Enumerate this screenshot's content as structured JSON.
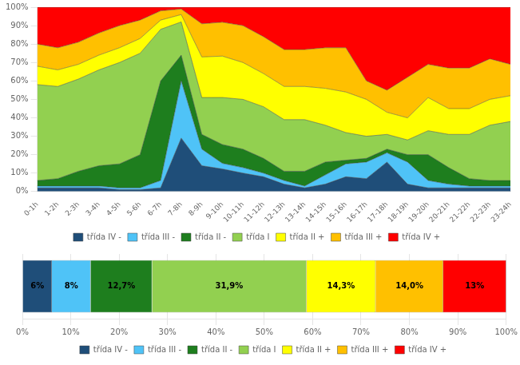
{
  "chart_data": [
    {
      "type": "area",
      "stacked": true,
      "grid": true,
      "legend": "bottom",
      "categories": [
        "0-1h",
        "1-2h",
        "2-3h",
        "3-4h",
        "4-5h",
        "5-6h",
        "6-7h",
        "7-8h",
        "8-9h",
        "9-10h",
        "10-11h",
        "11-12h",
        "12-13h",
        "13-14h",
        "14-15h",
        "15-16h",
        "16-17h",
        "17-18h",
        "18-19h",
        "19-20h",
        "20-21h",
        "21-22h",
        "22-23h",
        "23-24h"
      ],
      "ylim": [
        0,
        100
      ],
      "yticks": [
        {
          "value": 0,
          "label": "0%"
        },
        {
          "value": 10,
          "label": "10%"
        },
        {
          "value": 20,
          "label": "20%"
        },
        {
          "value": 30,
          "label": "30%"
        },
        {
          "value": 40,
          "label": "40%"
        },
        {
          "value": 50,
          "label": "50%"
        },
        {
          "value": 60,
          "label": "60%"
        },
        {
          "value": 70,
          "label": "70%"
        },
        {
          "value": 80,
          "label": "80%"
        },
        {
          "value": 90,
          "label": "90%"
        },
        {
          "value": 100,
          "label": "100%"
        }
      ],
      "series": [
        {
          "name": "třída IV -",
          "color": "#1f4e79",
          "values": [
            2,
            2,
            2,
            2,
            1,
            1,
            2,
            29,
            14,
            12.2449,
            10,
            8,
            4,
            2,
            4,
            8,
            7,
            16,
            4,
            2,
            2,
            2,
            2,
            2
          ]
        },
        {
          "name": "třída III -",
          "color": "#4fc3f7",
          "values": [
            1,
            1,
            1,
            1,
            1,
            1,
            4,
            31,
            9,
            3.0612,
            3,
            2,
            2,
            1,
            5,
            7,
            9,
            5,
            12,
            4,
            2,
            1,
            1,
            1
          ]
        },
        {
          "name": "třída II -",
          "color": "#1e7e1e",
          "values": [
            3,
            4,
            8,
            11,
            13,
            18,
            54,
            14,
            8,
            10.2041,
            10,
            8,
            5,
            8,
            7,
            2,
            2,
            2,
            4,
            14,
            9,
            4,
            3,
            3
          ]
        },
        {
          "name": "třída I",
          "color": "#92d050",
          "values": [
            52,
            50,
            50,
            52,
            55,
            55,
            28,
            18,
            20,
            25.5102,
            27,
            28,
            28,
            28,
            20,
            15,
            12,
            8,
            8,
            13,
            18,
            24,
            30,
            32
          ]
        },
        {
          "name": "třída II +",
          "color": "#ffff00",
          "values": [
            10,
            9,
            8,
            8,
            8,
            8,
            5,
            4,
            22,
            22.449,
            20,
            18,
            18,
            18,
            20,
            22,
            20,
            12,
            12,
            18,
            14,
            14,
            14,
            14
          ]
        },
        {
          "name": "třída III +",
          "color": "#ffc000",
          "values": [
            12,
            12,
            12,
            12,
            12,
            10,
            5,
            3,
            18,
            18.3673,
            20,
            20,
            20,
            20,
            22,
            24,
            10,
            12,
            22,
            18,
            22,
            22,
            22,
            17
          ]
        },
        {
          "name": "třída IV +",
          "color": "#ff0000",
          "values": [
            20,
            22,
            19,
            14,
            10,
            7,
            2,
            1,
            9,
            8.1633,
            10,
            16,
            23,
            23,
            22,
            22,
            40,
            45,
            38,
            31,
            33,
            33,
            28,
            31
          ]
        }
      ]
    },
    {
      "type": "bar",
      "orientation": "horizontal",
      "stacked": true,
      "grid": true,
      "legend": "bottom",
      "data_labels": true,
      "tick_labels": "x",
      "xlim": [
        0,
        100
      ],
      "xticks": [
        {
          "value": 0,
          "label": "0%"
        },
        {
          "value": 10,
          "label": "10%"
        },
        {
          "value": 20,
          "label": "20%"
        },
        {
          "value": 30,
          "label": "30%"
        },
        {
          "value": 40,
          "label": "40%"
        },
        {
          "value": 50,
          "label": "50%"
        },
        {
          "value": 60,
          "label": "60%"
        },
        {
          "value": 70,
          "label": "70%"
        },
        {
          "value": 80,
          "label": "80%"
        },
        {
          "value": 90,
          "label": "90%"
        },
        {
          "value": 100,
          "label": "100%"
        }
      ],
      "series": [
        {
          "name": "třída IV -",
          "color": "#1f4e79",
          "values": [
            6.1
          ],
          "value_labels": [
            "6%"
          ]
        },
        {
          "name": "třída III -",
          "color": "#4fc3f7",
          "values": [
            8.0
          ],
          "value_labels": [
            "8%"
          ]
        },
        {
          "name": "třída II -",
          "color": "#1e7e1e",
          "values": [
            12.7
          ],
          "value_labels": [
            "12,7%"
          ]
        },
        {
          "name": "třída I",
          "color": "#92d050",
          "values": [
            31.9
          ],
          "value_labels": [
            "31,9%"
          ]
        },
        {
          "name": "třída II +",
          "color": "#ffff00",
          "values": [
            14.3
          ],
          "value_labels": [
            "14,3%"
          ]
        },
        {
          "name": "třída III +",
          "color": "#ffc000",
          "values": [
            14.0
          ],
          "value_labels": [
            "14,0%"
          ]
        },
        {
          "name": "třída IV +",
          "color": "#ff0000",
          "values": [
            13.0
          ],
          "value_labels": [
            "13%"
          ]
        }
      ]
    }
  ]
}
